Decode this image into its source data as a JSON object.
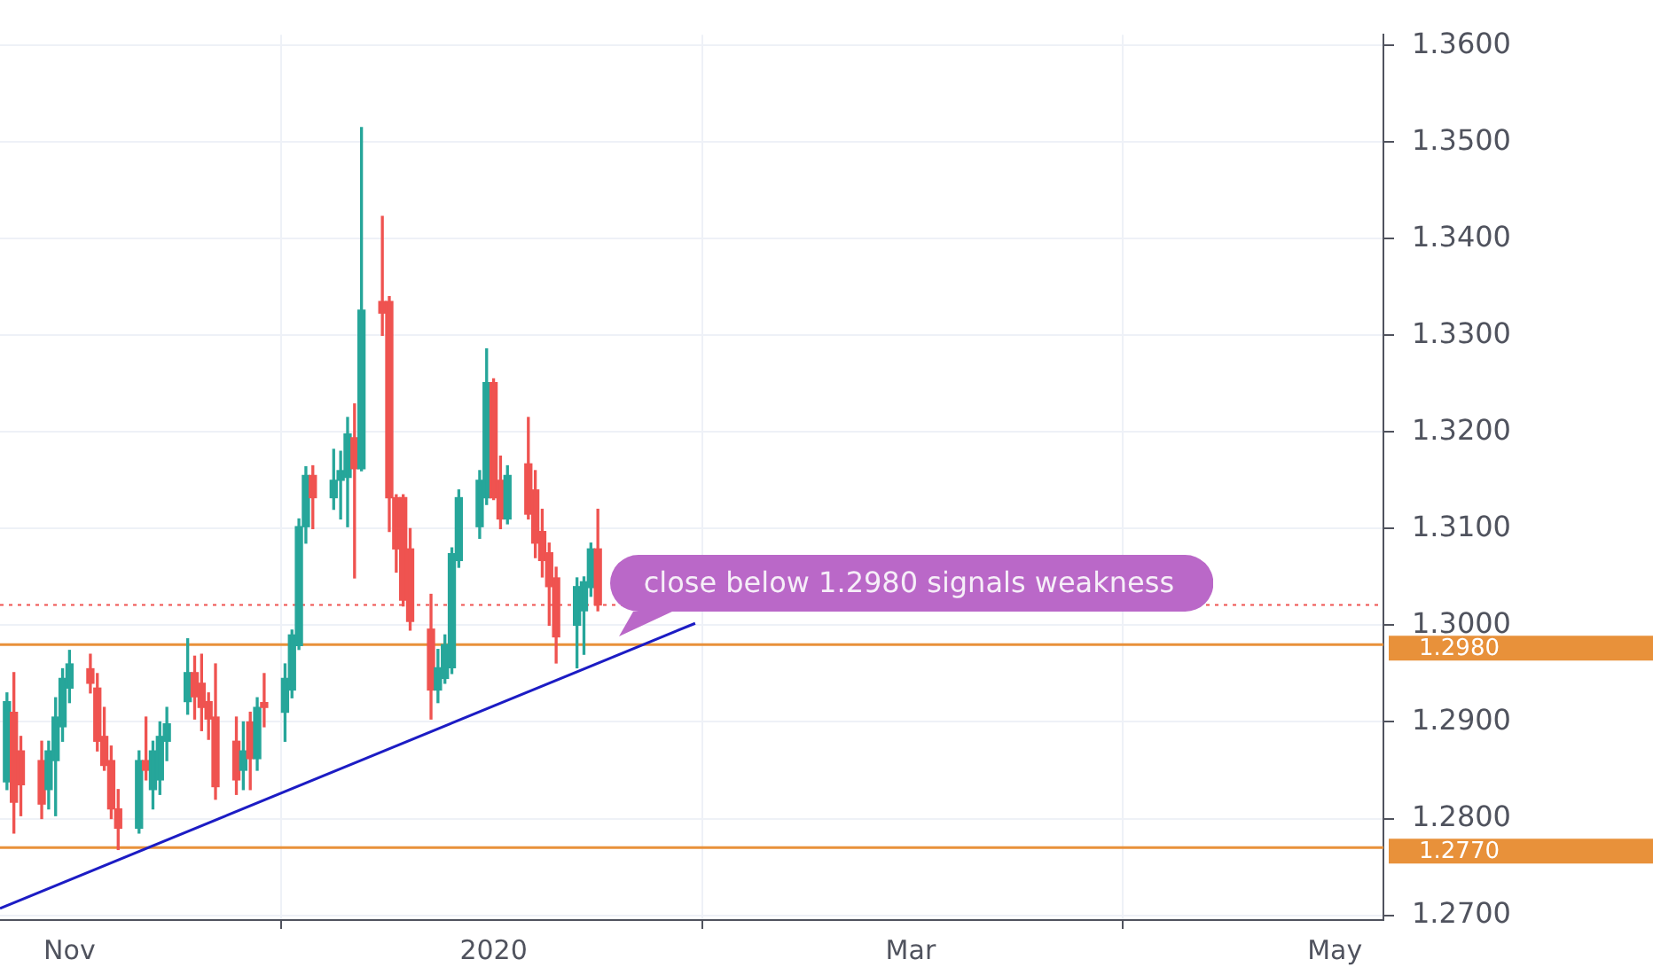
{
  "chart_data": {
    "type": "candlestick",
    "x": [
      "2019-10-23",
      "2019-10-24",
      "2019-10-25",
      "2019-10-28",
      "2019-10-29",
      "2019-10-30",
      "2019-10-31",
      "2019-11-01",
      "2019-11-04",
      "2019-11-05",
      "2019-11-06",
      "2019-11-07",
      "2019-11-08",
      "2019-11-11",
      "2019-11-12",
      "2019-11-13",
      "2019-11-14",
      "2019-11-15",
      "2019-11-18",
      "2019-11-19",
      "2019-11-20",
      "2019-11-21",
      "2019-11-22",
      "2019-11-25",
      "2019-11-26",
      "2019-11-27",
      "2019-11-28",
      "2019-11-29",
      "2019-12-02",
      "2019-12-03",
      "2019-12-04",
      "2019-12-05",
      "2019-12-06",
      "2019-12-09",
      "2019-12-10",
      "2019-12-11",
      "2019-12-12",
      "2019-12-13",
      "2019-12-16",
      "2019-12-17",
      "2019-12-18",
      "2019-12-19",
      "2019-12-20",
      "2019-12-23",
      "2019-12-24",
      "2019-12-25",
      "2019-12-26",
      "2019-12-27",
      "2019-12-30",
      "2019-12-31",
      "2020-01-01",
      "2020-01-02",
      "2020-01-03",
      "2020-01-06",
      "2020-01-07",
      "2020-01-08",
      "2020-01-09",
      "2020-01-10",
      "2020-01-13",
      "2020-01-14",
      "2020-01-15",
      "2020-01-16"
    ],
    "ohlc": [
      [
        1.2838,
        1.293,
        1.283,
        1.2921
      ],
      [
        1.291,
        1.2951,
        1.2785,
        1.2817
      ],
      [
        1.287,
        1.2885,
        1.2803,
        1.2835
      ],
      [
        1.286,
        1.288,
        1.28,
        1.2815
      ],
      [
        1.283,
        1.288,
        1.281,
        1.287
      ],
      [
        1.286,
        1.2925,
        1.2803,
        1.2905
      ],
      [
        1.2895,
        1.2955,
        1.288,
        1.2945
      ],
      [
        1.2935,
        1.2974,
        1.292,
        1.296
      ],
      [
        1.2955,
        1.297,
        1.293,
        1.294
      ],
      [
        1.2935,
        1.295,
        1.287,
        1.288
      ],
      [
        1.2885,
        1.2915,
        1.285,
        1.2855
      ],
      [
        1.286,
        1.2875,
        1.28,
        1.281
      ],
      [
        1.281,
        1.283,
        1.2768,
        1.279
      ],
      [
        1.279,
        1.287,
        1.2785,
        1.286
      ],
      [
        1.286,
        1.2905,
        1.284,
        1.285
      ],
      [
        1.283,
        1.288,
        1.281,
        1.287
      ],
      [
        1.284,
        1.29,
        1.2825,
        1.2885
      ],
      [
        1.288,
        1.2915,
        1.286,
        1.2898
      ],
      [
        1.2921,
        1.2986,
        1.2908,
        1.2951
      ],
      [
        1.2951,
        1.2968,
        1.2903,
        1.2926
      ],
      [
        1.294,
        1.297,
        1.2891,
        1.2915
      ],
      [
        1.2921,
        1.293,
        1.2882,
        1.2903
      ],
      [
        1.2905,
        1.296,
        1.282,
        1.2833
      ],
      [
        1.288,
        1.2905,
        1.2825,
        1.284
      ],
      [
        1.285,
        1.29,
        1.283,
        1.287
      ],
      [
        1.29,
        1.291,
        1.283,
        1.2862
      ],
      [
        1.2862,
        1.2925,
        1.285,
        1.2915
      ],
      [
        1.292,
        1.295,
        1.2895,
        1.2915
      ],
      [
        1.291,
        1.296,
        1.288,
        1.2945
      ],
      [
        1.2933,
        1.2995,
        1.2925,
        1.299
      ],
      [
        1.2979,
        1.311,
        1.2975,
        1.3102
      ],
      [
        1.3102,
        1.3164,
        1.3085,
        1.3155
      ],
      [
        1.3155,
        1.3165,
        1.31,
        1.3132
      ],
      [
        1.3132,
        1.3182,
        1.312,
        1.315
      ],
      [
        1.315,
        1.318,
        1.311,
        1.316
      ],
      [
        1.3153,
        1.3215,
        1.3102,
        1.3198
      ],
      [
        1.3194,
        1.3229,
        1.3049,
        1.3162
      ],
      [
        1.3162,
        1.3515,
        1.316,
        1.3326
      ],
      [
        1.3335,
        1.3423,
        1.33,
        1.3323
      ],
      [
        1.3335,
        1.334,
        1.3097,
        1.3132
      ],
      [
        1.3132,
        1.3135,
        1.3055,
        1.3079
      ],
      [
        1.3132,
        1.3135,
        1.302,
        1.3026
      ],
      [
        1.3079,
        1.31,
        1.2995,
        1.3004
      ],
      [
        1.2996,
        1.3032,
        1.2903,
        1.2933
      ],
      [
        1.2933,
        1.2975,
        1.292,
        1.2956
      ],
      [
        1.2945,
        1.299,
        1.294,
        1.298
      ],
      [
        1.2956,
        1.308,
        1.295,
        1.3074
      ],
      [
        1.3067,
        1.314,
        1.306,
        1.3132
      ],
      [
        1.3102,
        1.316,
        1.309,
        1.315
      ],
      [
        1.3132,
        1.3286,
        1.3125,
        1.3251
      ],
      [
        1.3251,
        1.3255,
        1.313,
        1.3132
      ],
      [
        1.315,
        1.3175,
        1.31,
        1.311
      ],
      [
        1.311,
        1.3165,
        1.3105,
        1.3155
      ],
      [
        1.3167,
        1.3215,
        1.311,
        1.3115
      ],
      [
        1.314,
        1.316,
        1.307,
        1.3085
      ],
      [
        1.3097,
        1.312,
        1.305,
        1.3067
      ],
      [
        1.3075,
        1.3085,
        1.3,
        1.304
      ],
      [
        1.3049,
        1.306,
        1.2961,
        1.2988
      ],
      [
        1.3,
        1.3049,
        1.2956,
        1.304
      ],
      [
        1.3015,
        1.305,
        1.297,
        1.3045
      ],
      [
        1.3039,
        1.3085,
        1.303,
        1.3079
      ],
      [
        1.3079,
        1.312,
        1.3015,
        1.3021
      ]
    ],
    "colors": [
      "#26a69a",
      "#ef5350",
      "#ef5350",
      "#ef5350",
      "#26a69a",
      "#26a69a",
      "#26a69a",
      "#26a69a",
      "#ef5350",
      "#ef5350",
      "#ef5350",
      "#ef5350",
      "#ef5350",
      "#26a69a",
      "#ef5350",
      "#26a69a",
      "#26a69a",
      "#26a69a",
      "#26a69a",
      "#ef5350",
      "#ef5350",
      "#ef5350",
      "#ef5350",
      "#ef5350",
      "#26a69a",
      "#ef5350",
      "#26a69a",
      "#ef5350",
      "#26a69a",
      "#26a69a",
      "#26a69a",
      "#26a69a",
      "#ef5350",
      "#26a69a",
      "#26a69a",
      "#26a69a",
      "#ef5350",
      "#26a69a",
      "#ef5350",
      "#ef5350",
      "#ef5350",
      "#ef5350",
      "#ef5350",
      "#ef5350",
      "#26a69a",
      "#26a69a",
      "#26a69a",
      "#26a69a",
      "#26a69a",
      "#26a69a",
      "#ef5350",
      "#ef5350",
      "#26a69a",
      "#ef5350",
      "#ef5350",
      "#ef5350",
      "#ef5350",
      "#ef5350",
      "#26a69a",
      "#26a69a",
      "#26a69a",
      "#ef5350"
    ],
    "series": [
      {
        "type": "line",
        "x": [
          "2019-10-22",
          "2020-01-30"
        ],
        "values": [
          1.2707,
          1.3002
        ],
        "color": "#1c1cc4"
      }
    ],
    "xlim": [
      "2019-10-22",
      "2020-05-08"
    ],
    "xticks": [
      {
        "value": "2019-11-01",
        "label": "Nov"
      },
      {
        "value": "2020-01-01",
        "label": "2020"
      },
      {
        "value": "2020-03-01",
        "label": "Mar"
      },
      {
        "value": "2020-05-01",
        "label": "May"
      }
    ],
    "ylim": [
      1.2695,
      1.3611
    ],
    "yticks": [
      {
        "value": 1.27,
        "label": "1.2700"
      },
      {
        "value": 1.28,
        "label": "1.2800"
      },
      {
        "value": 1.29,
        "label": "1.2900"
      },
      {
        "value": 1.3,
        "label": "1.3000"
      },
      {
        "value": 1.31,
        "label": "1.3100"
      },
      {
        "value": 1.32,
        "label": "1.3200"
      },
      {
        "value": 1.33,
        "label": "1.3300"
      },
      {
        "value": 1.34,
        "label": "1.3400"
      },
      {
        "value": 1.35,
        "label": "1.3500"
      },
      {
        "value": 1.36,
        "label": "1.3600"
      }
    ],
    "ref_lines": [
      {
        "axis": "y",
        "value": 1.298,
        "label": "1.2980",
        "color": "#e8913a"
      },
      {
        "axis": "y",
        "value": 1.277,
        "label": "1.2770",
        "color": "#e8913a"
      },
      {
        "axis": "y",
        "value": 1.3021,
        "color": "#ef5350",
        "line_style": "dotted"
      }
    ],
    "annotations": [
      {
        "text": "close below 1.2980 signals weakness",
        "x": "2020-01-19",
        "y": 1.2988
      }
    ],
    "grid": true,
    "legend": false
  }
}
